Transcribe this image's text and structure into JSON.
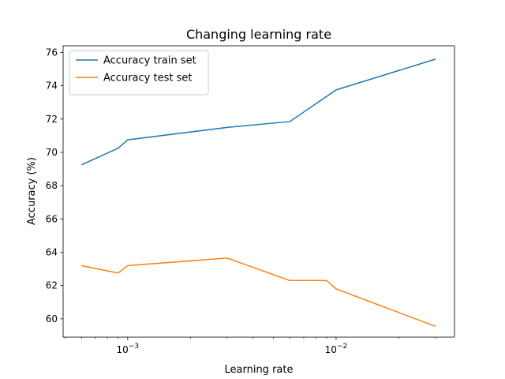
{
  "chart_data": {
    "type": "line",
    "title": "Changing learning rate",
    "xlabel": "Learning rate",
    "ylabel": "Accuracy (%)",
    "x_scale": "log",
    "xlim": [
      0.00049,
      0.037
    ],
    "ylim": [
      58.9,
      76.4
    ],
    "x_major_ticks": [
      {
        "value": 0.001,
        "base": "10",
        "exp": "−3"
      },
      {
        "value": 0.01,
        "base": "10",
        "exp": "−2"
      }
    ],
    "y_ticks": [
      60,
      62,
      64,
      66,
      68,
      70,
      72,
      74,
      76
    ],
    "y_tick_labels": [
      "60",
      "62",
      "64",
      "66",
      "68",
      "70",
      "72",
      "74",
      "76"
    ],
    "legend_position": "upper-left",
    "grid": false,
    "series": [
      {
        "name": "Accuracy train set",
        "color": "#1f77b4",
        "x": [
          0.0006,
          0.0009,
          0.001,
          0.003,
          0.006,
          0.01,
          0.03
        ],
        "y": [
          69.25,
          70.25,
          70.75,
          71.5,
          71.85,
          73.75,
          75.6
        ]
      },
      {
        "name": "Accuracy test set",
        "color": "#ff7f0e",
        "x": [
          0.0006,
          0.0009,
          0.001,
          0.003,
          0.006,
          0.009,
          0.01,
          0.03
        ],
        "y": [
          63.2,
          62.75,
          63.2,
          63.65,
          62.3,
          62.3,
          61.8,
          59.55
        ]
      }
    ]
  }
}
